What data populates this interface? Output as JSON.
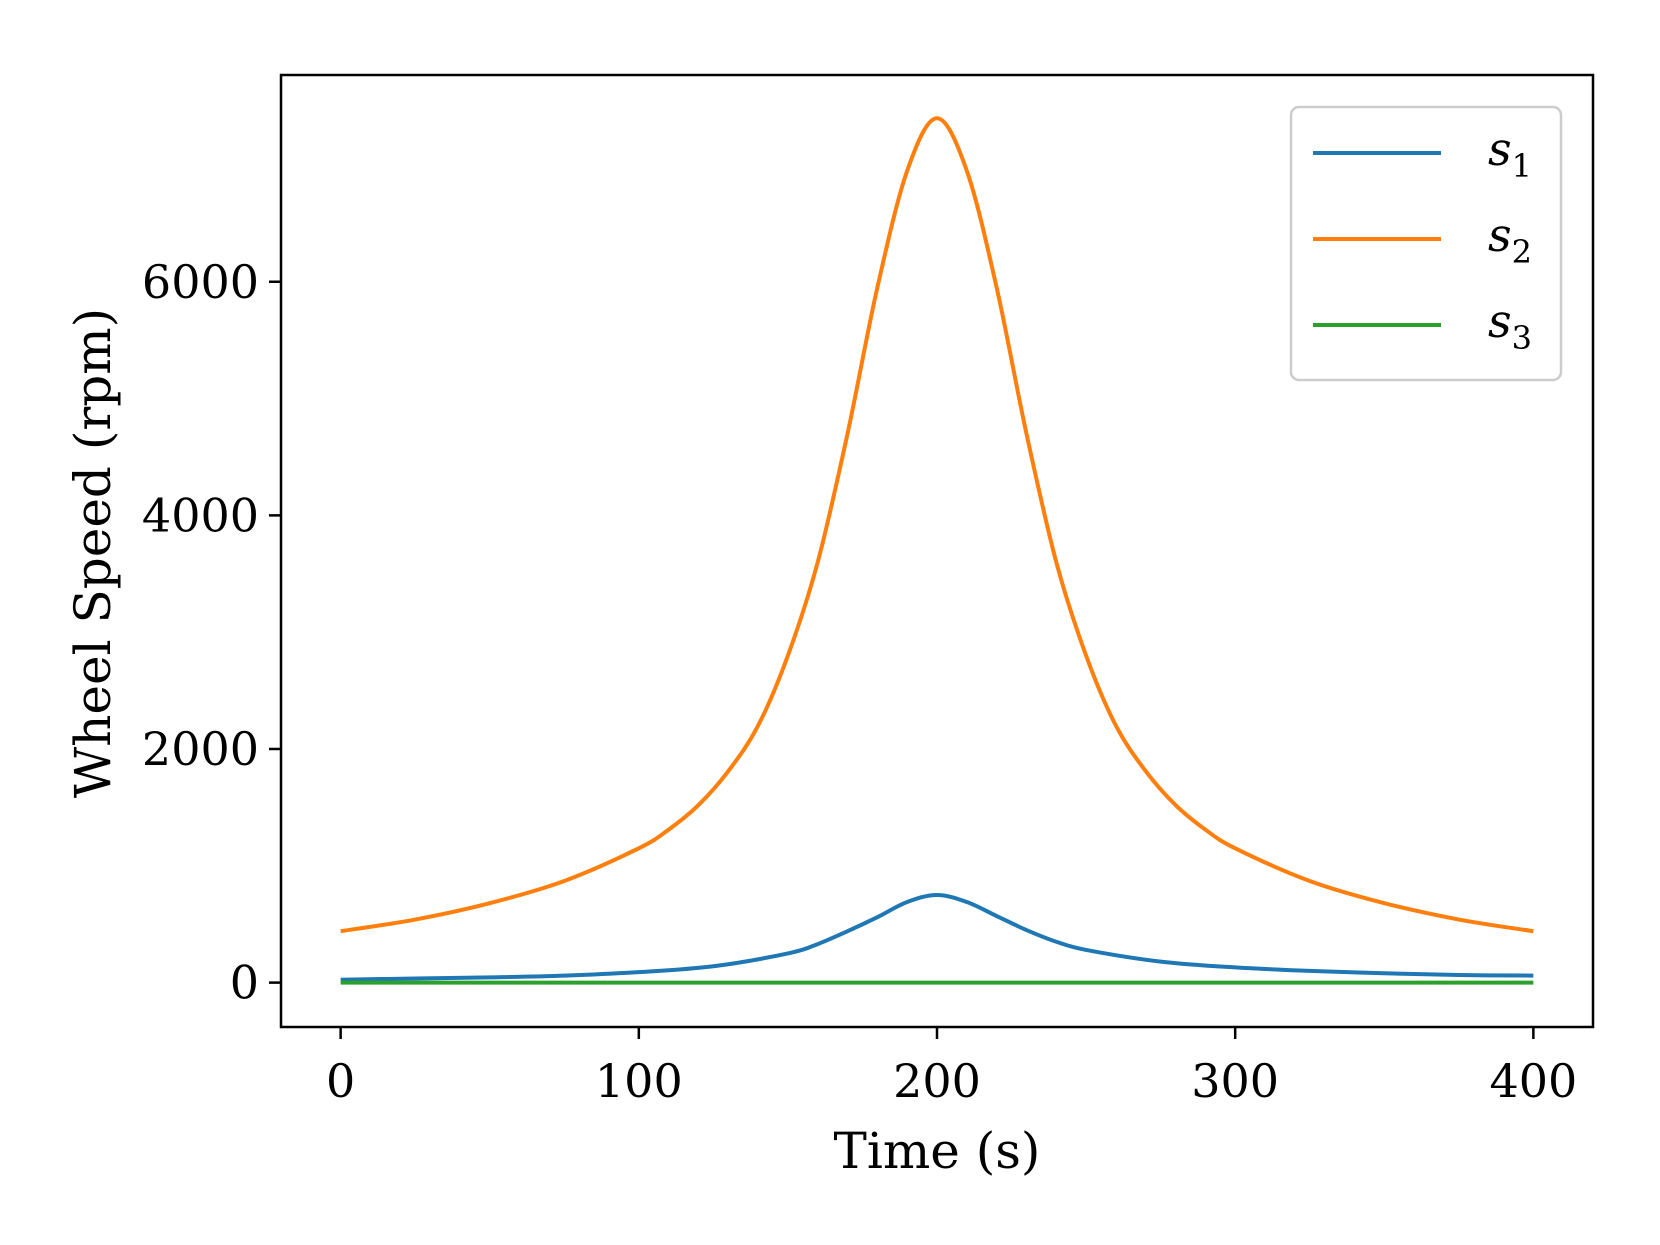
{
  "chart_data": {
    "type": "line",
    "title": "",
    "xlabel": "Time (s)",
    "ylabel": "Wheel Speed (rpm)",
    "xlim": [
      -20,
      420
    ],
    "ylim": [
      -380,
      7770
    ],
    "xticks": [
      0,
      100,
      200,
      300,
      400
    ],
    "yticks": [
      0,
      2000,
      4000,
      6000
    ],
    "xtick_labels": [
      "0",
      "100",
      "200",
      "300",
      "400"
    ],
    "ytick_labels": [
      "0",
      "2000",
      "4000",
      "6000"
    ],
    "grid": false,
    "legend_position": "top-right",
    "series": [
      {
        "name": "s",
        "subscript": "1",
        "color": "#1f77b4",
        "x": [
          0,
          25,
          50,
          75,
          100,
          125,
          150,
          160,
          170,
          180,
          190,
          200,
          210,
          220,
          230,
          240,
          250,
          275,
          300,
          325,
          350,
          375,
          400
        ],
        "y": [
          25,
          35,
          45,
          60,
          90,
          140,
          250,
          330,
          440,
          560,
          690,
          750,
          690,
          570,
          450,
          350,
          280,
          180,
          130,
          100,
          80,
          65,
          60
        ]
      },
      {
        "name": "s",
        "subscript": "2",
        "color": "#ff7f0e",
        "x": [
          0,
          25,
          50,
          75,
          100,
          110,
          120,
          130,
          140,
          150,
          160,
          170,
          180,
          190,
          200,
          210,
          220,
          230,
          240,
          250,
          260,
          270,
          280,
          290,
          300,
          325,
          350,
          375,
          400
        ],
        "y": [
          440,
          540,
          680,
          870,
          1150,
          1310,
          1520,
          1810,
          2200,
          2800,
          3600,
          4700,
          5950,
          6950,
          7400,
          6950,
          5950,
          4700,
          3600,
          2800,
          2200,
          1810,
          1520,
          1310,
          1150,
          870,
          680,
          540,
          440
        ]
      },
      {
        "name": "s",
        "subscript": "3",
        "color": "#2ca02c",
        "x": [
          0,
          400
        ],
        "y": [
          0,
          0
        ]
      }
    ]
  }
}
